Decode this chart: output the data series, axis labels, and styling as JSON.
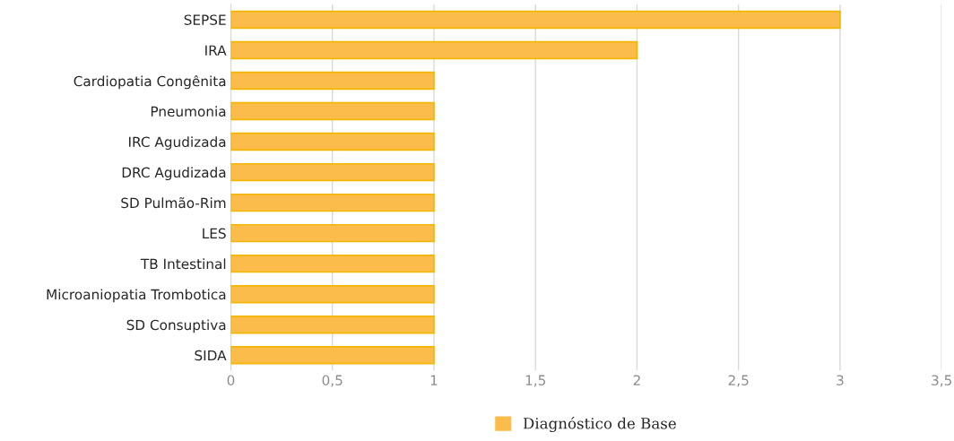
{
  "chart_data": {
    "type": "bar",
    "orientation": "horizontal",
    "categories": [
      "SEPSE",
      "IRA",
      "Cardiopatia Congênita",
      "Pneumonia",
      "IRC Agudizada",
      "DRC Agudizada",
      "SD Pulmão-Rim",
      "LES",
      "TB Intestinal",
      "Microaniopatia Trombotica",
      "SD Consuptiva",
      "SIDA"
    ],
    "series": [
      {
        "name": "Diagnóstico de Base",
        "color": "#fbbc4c",
        "values": [
          3,
          2,
          1,
          1,
          1,
          1,
          1,
          1,
          1,
          1,
          1,
          1
        ]
      }
    ],
    "xlim": [
      0,
      3.5
    ],
    "xticks": [
      0,
      {
        "value": 0.5,
        "label": "0,5"
      },
      1,
      {
        "value": 1.5,
        "label": "1,5"
      },
      2,
      {
        "value": 2.5,
        "label": "2,5"
      },
      3,
      {
        "value": 3.5,
        "label": "3,5"
      }
    ],
    "grid": "x",
    "legend": "bottom"
  }
}
